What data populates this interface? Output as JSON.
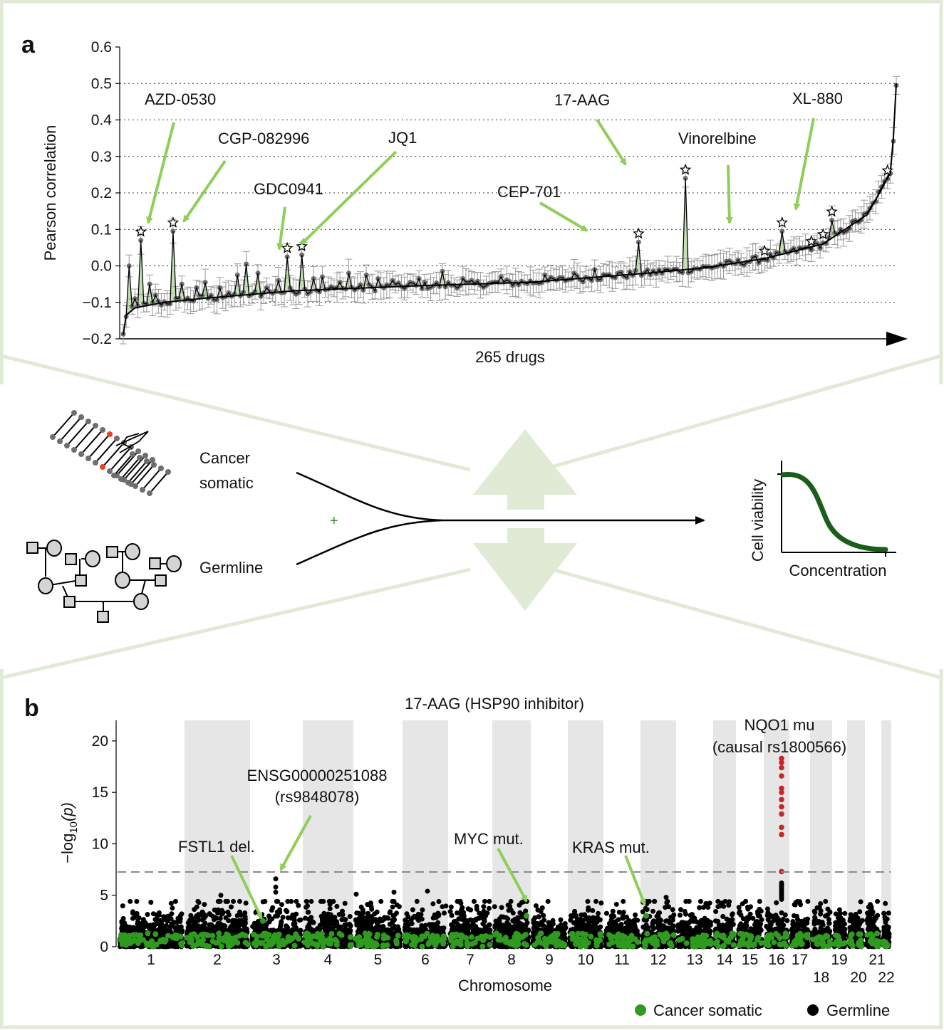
{
  "panel_a": {
    "letter": "a",
    "ylabel": "Pearson correlation",
    "xlabel": "265 drugs",
    "yticks": [
      "0.6",
      "0.5",
      "0.4",
      "0.3",
      "0.2",
      "0.1",
      "0.0",
      "−0.1",
      "−0.2"
    ],
    "annotations": [
      "AZD-0530",
      "CGP-082996",
      "GDC0941",
      "JQ1",
      "CEP-701",
      "17-AAG",
      "Vinorelbine",
      "XL-880"
    ]
  },
  "schematic": {
    "label_cancer_line1": "Cancer",
    "label_cancer_line2": "somatic",
    "label_germline": "Germline",
    "plus": "+",
    "curve_ylabel": "Cell viability",
    "curve_xlabel": "Concentration"
  },
  "panel_b": {
    "letter": "b",
    "title": "17-AAG (HSP90 inhibitor)",
    "yticks": [
      "20",
      "15",
      "10",
      "5",
      "0"
    ],
    "ylabel_prefix": "−log",
    "ylabel_sub": "10",
    "ylabel_suffix": "(p)",
    "xlabel": "Chromosome",
    "annotations": {
      "nqo1_line1": "NQO1 mu",
      "nqo1_line2": "(causal rs1800566)",
      "ensg_line1": "ENSG00000251088",
      "ensg_line2": "(rs9848078)",
      "fstl1": "FSTL1 del.",
      "myc": "MYC mut.",
      "kras": "KRAS mut."
    },
    "legend": {
      "somatic": "Cancer somatic",
      "germline": "Germline"
    }
  },
  "colors": {
    "highlight_green": "#8fce5a",
    "frame_green": "#e1ead4",
    "arrow_fill": "#e1ead4",
    "somatic_green": "#2e9a1e",
    "germline_black": "#000000",
    "significant_red": "#c62828",
    "curve_green": "#1a5e1a",
    "stripe_gray": "#e6e6e6"
  },
  "chart_data": [
    {
      "type": "line",
      "title": "",
      "xlabel": "265 drugs",
      "ylabel": "Pearson correlation",
      "ylim": [
        -0.2,
        0.6
      ],
      "n_drugs": 265,
      "highlighted_drugs": [
        {
          "name": "AZD-0530",
          "drug_index": 7,
          "r": 0.07
        },
        {
          "name": "CGP-082996",
          "drug_index": 18,
          "r": 0.095
        },
        {
          "name": "GDC0941",
          "drug_index": 57,
          "r": 0.025
        },
        {
          "name": "JQ1",
          "drug_index": 62,
          "r": 0.03
        },
        {
          "name": "CEP-701",
          "drug_index": 177,
          "r": 0.065
        },
        {
          "name": "17-AAG",
          "drug_index": 193,
          "r": 0.24
        },
        {
          "name": "Vinorelbine",
          "drug_index": 226,
          "r": 0.095
        },
        {
          "name": "XL-880",
          "drug_index": 243,
          "r": 0.125
        }
      ],
      "baseline_curve": [
        [
          1,
          -0.19
        ],
        [
          2,
          -0.135
        ],
        [
          5,
          -0.115
        ],
        [
          15,
          -0.1
        ],
        [
          30,
          -0.088
        ],
        [
          60,
          -0.068
        ],
        [
          100,
          -0.055
        ],
        [
          140,
          -0.045
        ],
        [
          180,
          -0.02
        ],
        [
          200,
          -0.005
        ],
        [
          220,
          0.02
        ],
        [
          240,
          0.06
        ],
        [
          255,
          0.14
        ],
        [
          260,
          0.21
        ],
        [
          263,
          0.26
        ],
        [
          264,
          0.35
        ],
        [
          265,
          0.5
        ]
      ]
    },
    {
      "type": "scatter",
      "title": "17-AAG (HSP90 inhibitor)",
      "xlabel": "Chromosome",
      "ylabel": "−log10(p)",
      "ylim": [
        0,
        22
      ],
      "significance_threshold": 7.3,
      "chromosomes": [
        "1",
        "2",
        "3",
        "4",
        "5",
        "6",
        "7",
        "8",
        "9",
        "10",
        "11",
        "12",
        "13",
        "14",
        "15",
        "16",
        "17",
        "18",
        "19",
        "20",
        "21",
        "22"
      ],
      "series": [
        {
          "name": "Cancer somatic",
          "color": "#2e9a1e"
        },
        {
          "name": "Germline",
          "color": "#000000"
        }
      ],
      "top_hits": [
        {
          "label": "NQO1 mu (causal rs1800566)",
          "chromosome": "16",
          "neglog10p": [
            18.3,
            17.9,
            17.4,
            16.6,
            15.4,
            15.0,
            14.3,
            13.6,
            12.9,
            11.6,
            10.9,
            7.3
          ]
        },
        {
          "label": "ENSG00000251088 (rs9848078)",
          "chromosome": "3",
          "neglog10p": 6.6
        },
        {
          "label": "FSTL1 del.",
          "chromosome": "3",
          "neglog10p": 2.5
        },
        {
          "label": "MYC mut.",
          "chromosome": "8",
          "neglog10p": 3.0
        },
        {
          "label": "KRAS mut.",
          "chromosome": "12",
          "neglog10p": 3.0
        }
      ]
    }
  ]
}
